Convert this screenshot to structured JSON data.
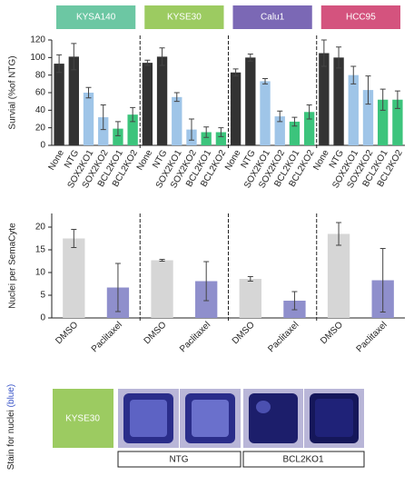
{
  "chart_data": [
    {
      "type": "bar",
      "ylabel": "Survial (%of NTG)",
      "categories": [
        "None",
        "NTG",
        "SOX2KO1",
        "SOX2KO2",
        "BCL2KO1",
        "BCL2KO2"
      ],
      "bar_colors": [
        "#333333",
        "#333333",
        "#9fc5e8",
        "#9fc5e8",
        "#3cc47c",
        "#3cc47c"
      ],
      "ylim": [
        0,
        120
      ],
      "yticks": [
        0,
        20,
        40,
        60,
        80,
        100,
        120
      ],
      "panels": [
        {
          "name": "KYSA140",
          "color": "#6cc7a3",
          "values": [
            93,
            101,
            60,
            32,
            19,
            35
          ],
          "errors": [
            10,
            15,
            6,
            14,
            8,
            8
          ]
        },
        {
          "name": "KYSE30",
          "color": "#9ccb61",
          "values": [
            94,
            101,
            55,
            18,
            15,
            15
          ],
          "errors": [
            3,
            10,
            5,
            12,
            6,
            5
          ]
        },
        {
          "name": "Calu1",
          "color": "#7b68b5",
          "values": [
            83,
            100,
            73,
            33,
            27,
            38
          ],
          "errors": [
            4,
            4,
            3,
            6,
            5,
            8
          ]
        },
        {
          "name": "HCC95",
          "color": "#d4537e",
          "values": [
            105,
            100,
            80,
            63,
            52,
            52
          ],
          "errors": [
            15,
            12,
            10,
            16,
            12,
            10
          ]
        }
      ]
    },
    {
      "type": "bar",
      "ylabel": "Nuclei per SemaCyte",
      "categories": [
        "DMSO",
        "Paclitaxel"
      ],
      "bar_colors": [
        "#d6d6d6",
        "#8f8fcc"
      ],
      "ylim": [
        0,
        23
      ],
      "yticks": [
        0,
        5,
        10,
        15,
        20
      ],
      "panels": [
        {
          "values": [
            17.5,
            6.7
          ],
          "errors": [
            2,
            5.3
          ]
        },
        {
          "values": [
            12.7,
            8.1
          ],
          "errors": [
            0.2,
            4.3
          ]
        },
        {
          "values": [
            8.6,
            3.8
          ],
          "errors": [
            0.5,
            2
          ]
        },
        {
          "values": [
            18.5,
            8.3
          ],
          "errors": [
            2.5,
            7
          ]
        }
      ]
    }
  ],
  "image_panel": {
    "ylabel": "Stain for nuclei",
    "ylabel_color_word": "(blue)",
    "cell_line": "KYSE30",
    "groups": [
      "NTG",
      "BCL2KO1"
    ]
  }
}
